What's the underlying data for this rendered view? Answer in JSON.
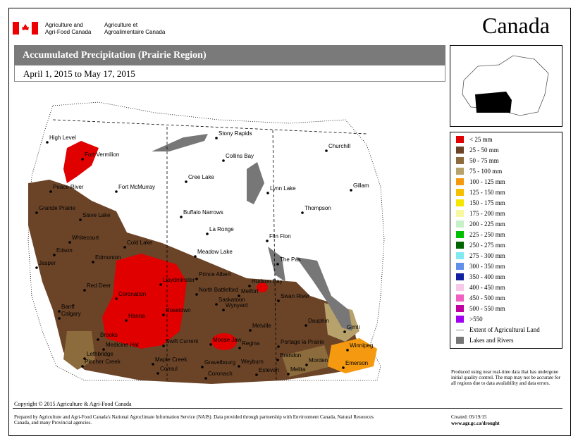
{
  "header": {
    "agency_en_1": "Agriculture and",
    "agency_en_2": "Agri-Food Canada",
    "agency_fr_1": "Agriculture et",
    "agency_fr_2": "Agroalimentaire Canada",
    "wordmark": "Canada"
  },
  "title": "Accumulated Precipitation (Prairie Region)",
  "subtitle": "April 1, 2015 to May 17, 2015",
  "map": {
    "cities": [
      "High Level",
      "Fort Vermilion",
      "Peace River",
      "Grande Prairie",
      "Slave Lake",
      "Fort McMurray",
      "Whitecourt",
      "Edson",
      "Jasper",
      "Edmonton",
      "Cold Lake",
      "Red Deer",
      "Coronation",
      "Banff",
      "Calgary",
      "Hanna",
      "Brooks",
      "Medicine Hat",
      "Lethbridge",
      "Pincher Creek",
      "Lloydminster",
      "North Battleford",
      "Rosetown",
      "Swift Current",
      "Maple Creek",
      "Consul",
      "Coronach",
      "Gravelbourg",
      "Moose Jaw",
      "Regina",
      "Weyburn",
      "Estevan",
      "Melita",
      "Brandon",
      "Morden",
      "Emerson",
      "Winnipeg",
      "Portage la Prairie",
      "Dauphin",
      "Swan River",
      "Gimli",
      "Melfort",
      "Hudson Bay",
      "Prince Albert",
      "Saskatoon",
      "Wynyard",
      "Melville",
      "Meadow Lake",
      "Stony Rapids",
      "Collins Bay",
      "Cree Lake",
      "Buffalo Narrows",
      "La Ronge",
      "Flin Flon",
      "The Pas",
      "Thompson",
      "Gillam",
      "Churchill",
      "Lynn Lake"
    ]
  },
  "legend": {
    "items": [
      {
        "label": "< 25 mm",
        "color": "#e00000"
      },
      {
        "label": "25 - 50 mm",
        "color": "#6b4428"
      },
      {
        "label": "50 - 75 mm",
        "color": "#8c6c3c"
      },
      {
        "label": "75 - 100 mm",
        "color": "#b8a26c"
      },
      {
        "label": "100 - 125 mm",
        "color": "#f59a10"
      },
      {
        "label": "125 - 150 mm",
        "color": "#f6c000"
      },
      {
        "label": "150 - 175 mm",
        "color": "#f4e600"
      },
      {
        "label": "175 - 200 mm",
        "color": "#f8f8a0"
      },
      {
        "label": "200 - 225 mm",
        "color": "#c8f0c8"
      },
      {
        "label": "225 - 250 mm",
        "color": "#00c000"
      },
      {
        "label": "250 - 275 mm",
        "color": "#006400"
      },
      {
        "label": "275 - 300 mm",
        "color": "#80e8f0"
      },
      {
        "label": "300 - 350 mm",
        "color": "#6090e8"
      },
      {
        "label": "350 - 400 mm",
        "color": "#1020a0"
      },
      {
        "label": "400 - 450 mm",
        "color": "#f8c8e8"
      },
      {
        "label": "450 - 500 mm",
        "color": "#f060c0"
      },
      {
        "label": "500 - 550 mm",
        "color": "#c000a0"
      },
      {
        "label": ">550",
        "color": "#a000f0"
      }
    ],
    "agricultural_land": "Extent of Agricultural Land",
    "lakes_and_rivers": "Lakes and Rivers"
  },
  "note": "Produced using near real-time data that has undergone initial quality control.  The map may not be accurate for all regions due to data availability and data errors.",
  "copyright": "Copyright © 2015 Agriculture & Agri-Food Canada",
  "prepared_by": "Prepared by Agriculture and Agri-Food Canada's National Agroclimate Information Service (NAIS).  Data provided through partnership with Environment Canada, Natural Resources Canada, and many Provincial agencies.",
  "created": "Created: 05/19/15",
  "url": "www.agr.gc.ca/drought"
}
